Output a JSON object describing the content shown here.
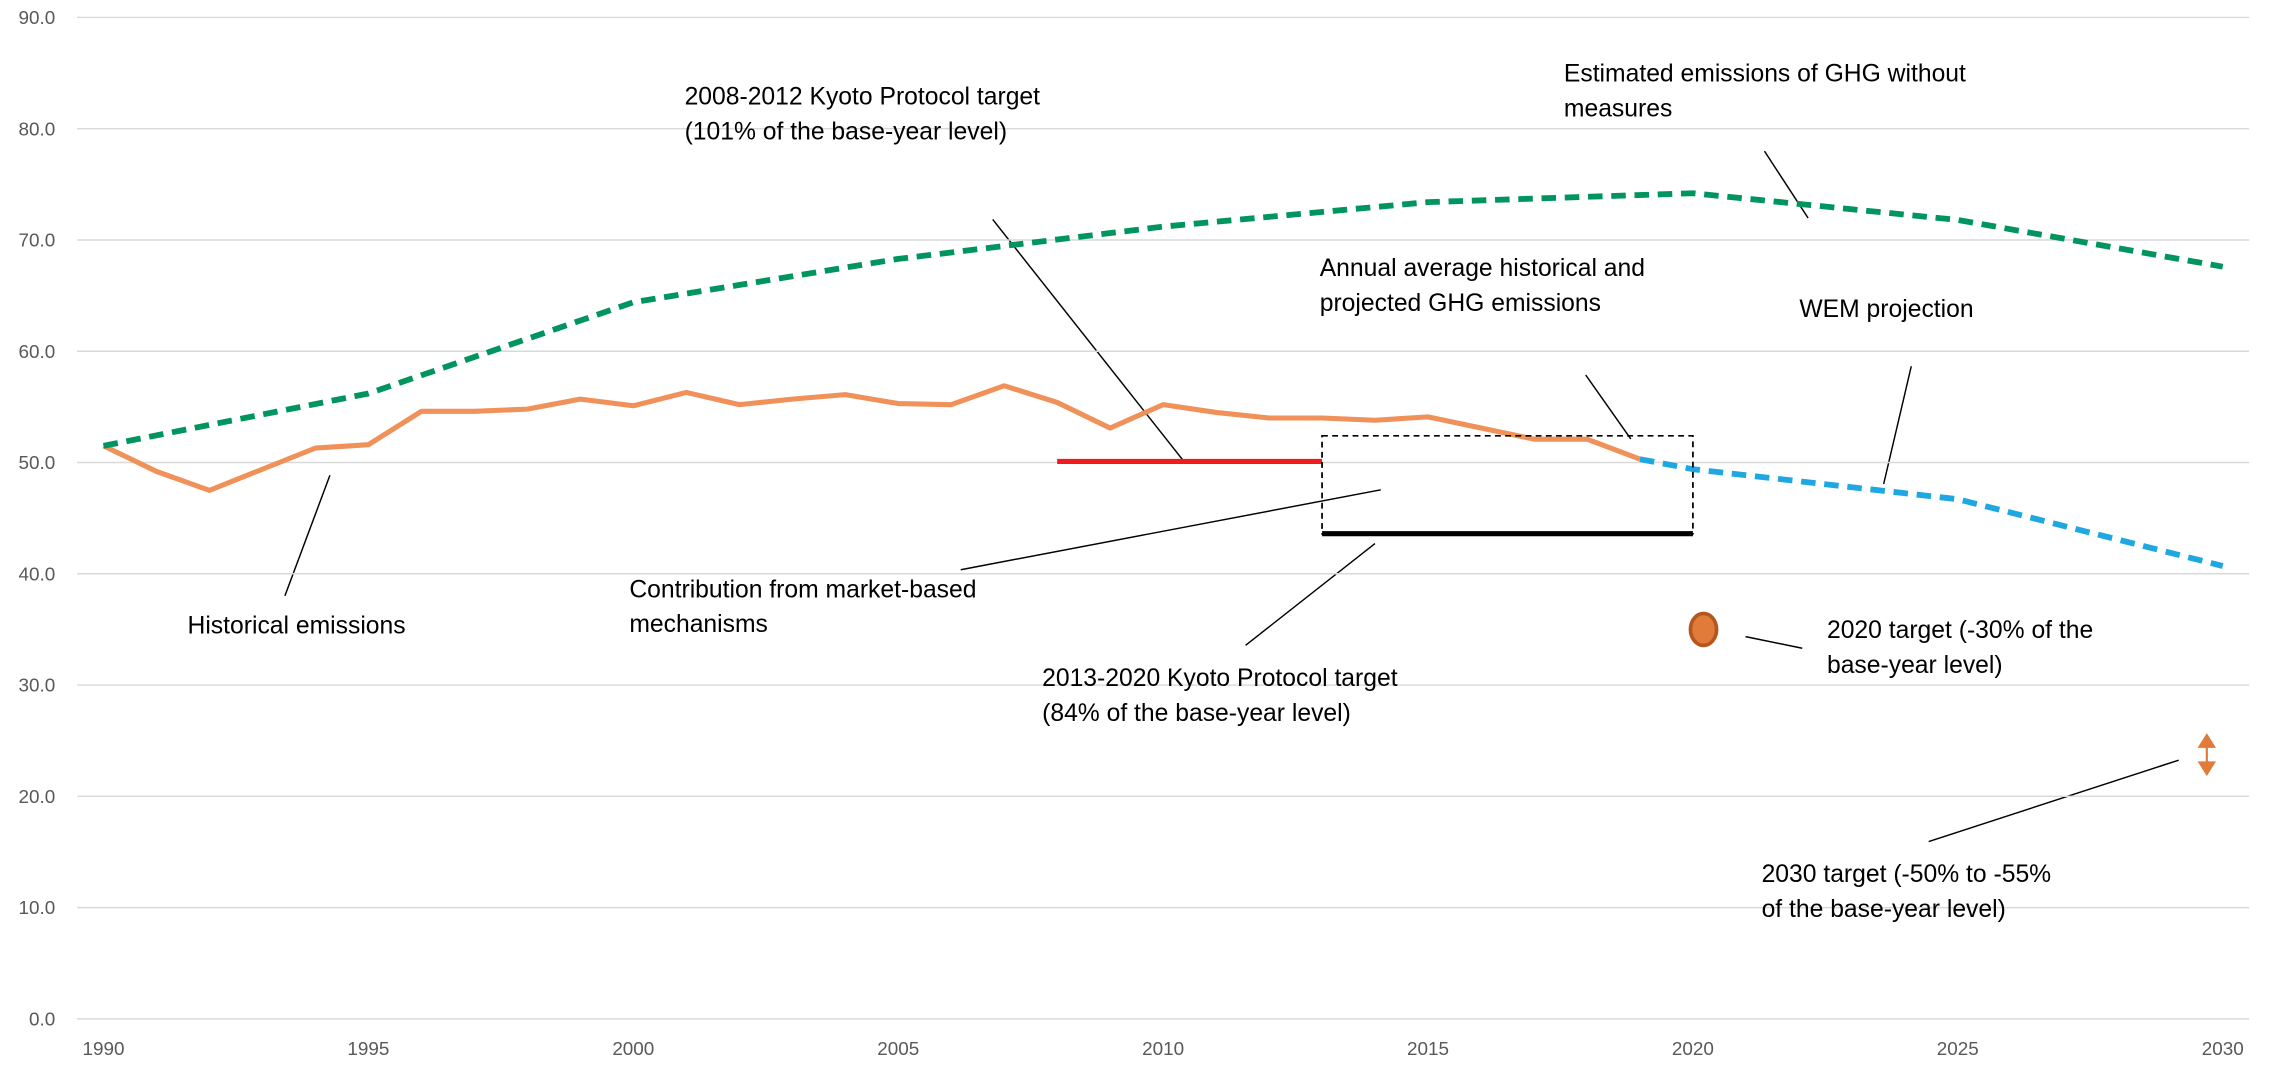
{
  "chart_data": {
    "type": "line",
    "xlim": [
      1989.5,
      2030.5
    ],
    "ylim": [
      0,
      90
    ],
    "xticks": [
      1990,
      1995,
      2000,
      2005,
      2010,
      2015,
      2020,
      2025,
      2030
    ],
    "yticks": [
      {
        "value": 0,
        "label": "0.0"
      },
      {
        "value": 10,
        "label": "10.0"
      },
      {
        "value": 20,
        "label": "20.0"
      },
      {
        "value": 30,
        "label": "30.0"
      },
      {
        "value": 40,
        "label": "40.0"
      },
      {
        "value": 50,
        "label": "50.0"
      },
      {
        "value": 60,
        "label": "60.0"
      },
      {
        "value": 70,
        "label": "70.0"
      },
      {
        "value": 80,
        "label": "80.0"
      },
      {
        "value": 90,
        "label": "90.0"
      }
    ],
    "grid": true,
    "series": [
      {
        "color": "#f0915a",
        "style": "solid",
        "x": [
          1990,
          1991,
          1992,
          1993,
          1994,
          1995,
          1996,
          1997,
          1998,
          1999,
          2000,
          2001,
          2002,
          2003,
          2004,
          2005,
          2006,
          2007,
          2008,
          2009,
          2010,
          2011,
          2012,
          2013,
          2014,
          2015,
          2016,
          2017,
          2018,
          2019
        ],
        "values": [
          51.5,
          49.2,
          47.5,
          49.4,
          51.3,
          51.6,
          54.6,
          54.6,
          54.8,
          55.7,
          55.1,
          56.3,
          55.2,
          55.7,
          56.1,
          55.3,
          55.2,
          56.9,
          55.4,
          53.1,
          55.2,
          54.5,
          54.0,
          54.0,
          53.8,
          54.1,
          53.1,
          52.1,
          52.1,
          50.3
        ]
      },
      {
        "color": "#00945e",
        "style": "dashed",
        "x": [
          1990,
          1995,
          2000,
          2005,
          2010,
          2015,
          2020,
          2025,
          2030
        ],
        "values": [
          51.5,
          56.2,
          64.4,
          68.3,
          71.2,
          73.4,
          74.2,
          71.8,
          67.6
        ]
      },
      {
        "color": "#1ea7e1",
        "style": "dashed",
        "x": [
          2019,
          2020,
          2025,
          2030
        ],
        "values": [
          50.3,
          49.4,
          46.7,
          40.7
        ]
      }
    ],
    "kyoto_2008_2012": {
      "x": [
        2008,
        2013
      ],
      "value": 50.1,
      "color": "#ee1c1c"
    },
    "kyoto_2013_2020": {
      "x": [
        2013,
        2020
      ],
      "value": 43.6,
      "color": "#000000"
    },
    "market_mechanisms": {
      "x": [
        2013,
        2020
      ],
      "values": [
        43.6,
        52.4
      ]
    },
    "target_2020": {
      "x": 2020.2,
      "value": 35.0,
      "color": "#e07b39"
    },
    "target_2030": {
      "x": 2029.7,
      "values": [
        25.5,
        22.0
      ],
      "color": "#e07b39"
    },
    "annotations": [
      {
        "lines": [
          "2008-2012 Kyoto Protocol target",
          "(101% of the base-year level)"
        ]
      },
      {
        "lines": [
          "Estimated emissions of GHG without",
          "measures"
        ]
      },
      {
        "lines": [
          "Annual average historical and",
          "projected GHG emissions"
        ]
      },
      {
        "lines": [
          "WEM projection"
        ]
      },
      {
        "lines": [
          "Historical emissions"
        ]
      },
      {
        "lines": [
          "Contribution from market-based",
          "mechanisms"
        ]
      },
      {
        "lines": [
          "2013-2020 Kyoto Protocol target",
          "(84% of the base-year level)"
        ]
      },
      {
        "lines": [
          "2020 target (-30% of the",
          "base-year level)"
        ]
      },
      {
        "lines": [
          "2030 target (-50% to -55%",
          "of the base-year level)"
        ]
      }
    ]
  }
}
